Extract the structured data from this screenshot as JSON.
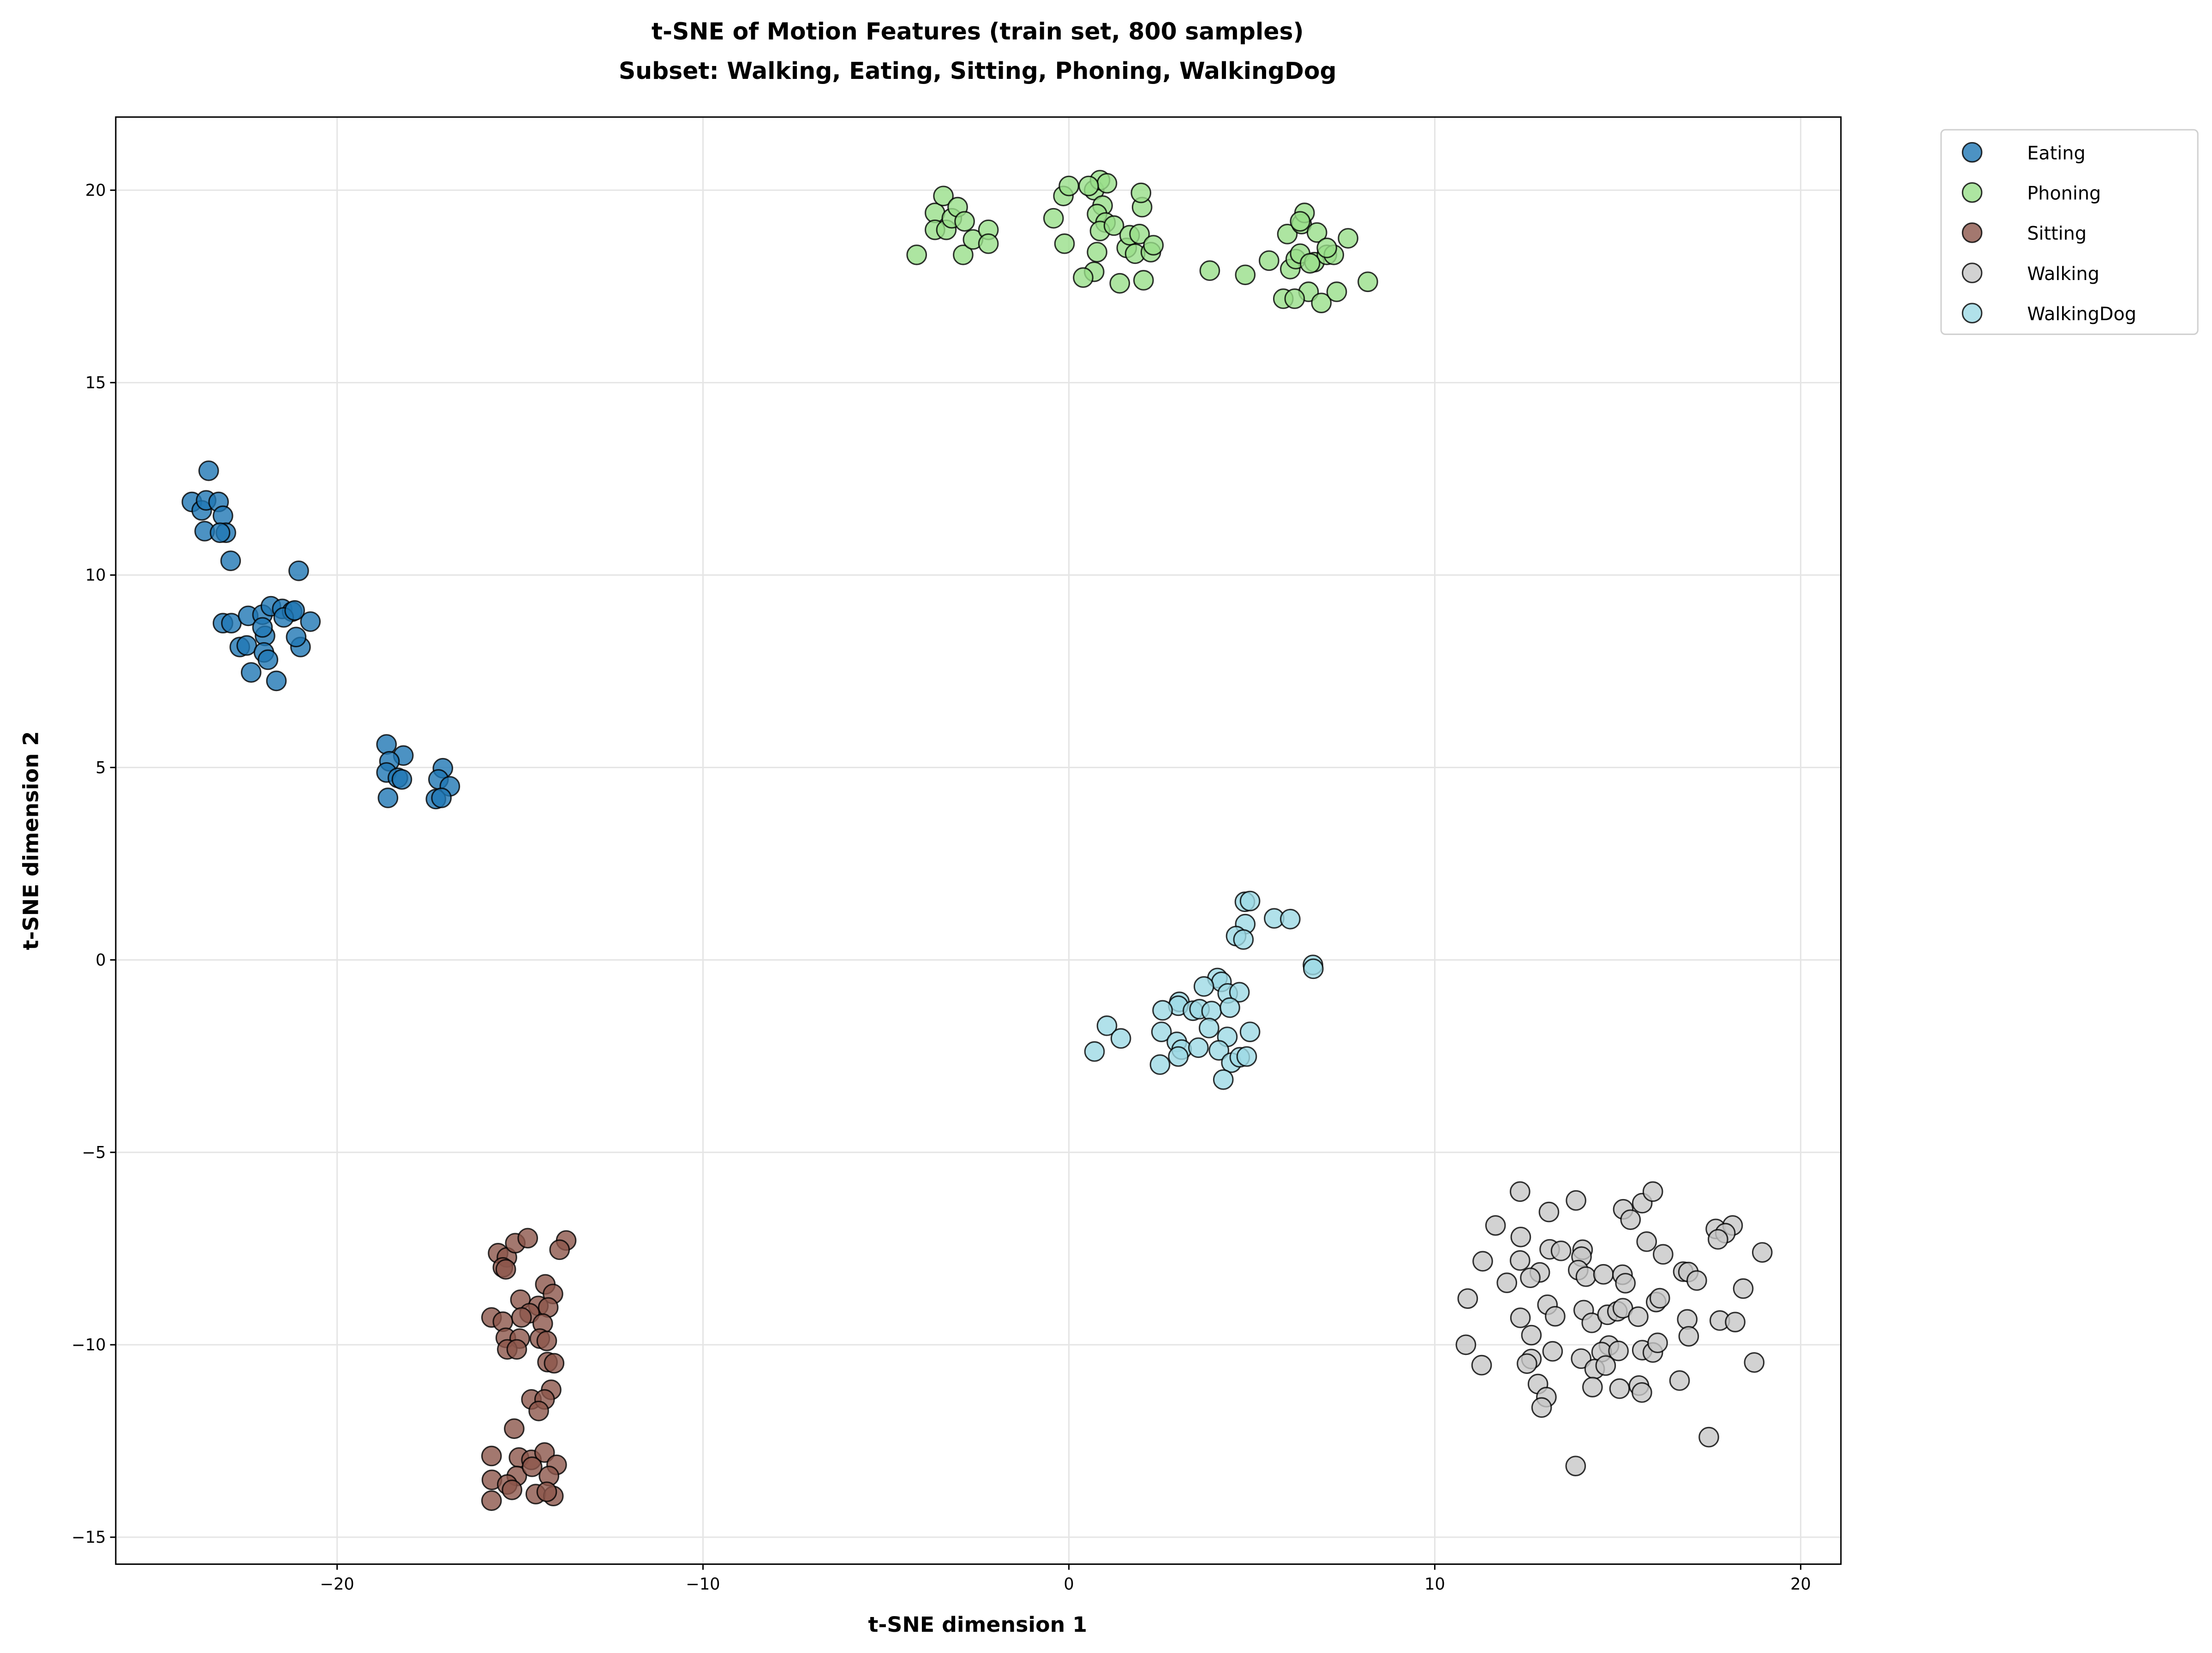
{
  "chart_data": {
    "type": "scatter",
    "title": "t-SNE of Motion Features (train set, 800 samples)",
    "subtitle": "Subset: Walking, Eating, Sitting, Phoning, WalkingDog",
    "xlabel": "t-SNE dimension 1",
    "ylabel": "t-SNE dimension 2",
    "xlim": [
      -26.05,
      21.1
    ],
    "ylim": [
      -15.7,
      21.9
    ],
    "xticks": [
      -20,
      -10,
      0,
      10,
      20
    ],
    "yticks": [
      -15,
      -10,
      -5,
      0,
      5,
      10,
      15,
      20
    ],
    "xtick_labels": [
      "−20",
      "−10",
      "0",
      "10",
      "20"
    ],
    "ytick_labels": [
      "−15",
      "−10",
      "−5",
      "0",
      "5",
      "10",
      "15",
      "20"
    ],
    "grid": true,
    "legend_placement": "outside-top-right",
    "series": [
      {
        "name": "Eating",
        "color": "#1f77b4",
        "points": [
          [
            -23.51,
            12.71
          ],
          [
            -23.97,
            11.9
          ],
          [
            -23.7,
            11.68
          ],
          [
            -23.58,
            11.94
          ],
          [
            -23.24,
            11.9
          ],
          [
            -23.12,
            11.54
          ],
          [
            -23.62,
            11.14
          ],
          [
            -23.04,
            11.1
          ],
          [
            -23.2,
            11.1
          ],
          [
            -22.91,
            10.37
          ],
          [
            -21.05,
            10.11
          ],
          [
            -23.12,
            8.75
          ],
          [
            -22.89,
            8.75
          ],
          [
            -22.43,
            8.94
          ],
          [
            -22.04,
            8.97
          ],
          [
            -21.81,
            9.19
          ],
          [
            -21.5,
            9.12
          ],
          [
            -21.23,
            9.05
          ],
          [
            -20.73,
            8.79
          ],
          [
            -22.66,
            8.13
          ],
          [
            -22.47,
            8.17
          ],
          [
            -21.97,
            8.42
          ],
          [
            -22.0,
            7.99
          ],
          [
            -21.89,
            7.8
          ],
          [
            -22.35,
            7.47
          ],
          [
            -21.66,
            7.25
          ],
          [
            -21.0,
            8.13
          ],
          [
            -21.12,
            8.39
          ],
          [
            -21.46,
            8.9
          ],
          [
            -22.04,
            8.64
          ],
          [
            -21.16,
            9.08
          ],
          [
            -18.65,
            5.6
          ],
          [
            -18.19,
            5.31
          ],
          [
            -18.57,
            5.16
          ],
          [
            -18.65,
            4.87
          ],
          [
            -18.34,
            4.73
          ],
          [
            -18.23,
            4.69
          ],
          [
            -18.61,
            4.21
          ],
          [
            -17.11,
            4.98
          ],
          [
            -17.23,
            4.69
          ],
          [
            -16.92,
            4.51
          ],
          [
            -17.3,
            4.18
          ],
          [
            -17.15,
            4.21
          ]
        ]
      },
      {
        "name": "Phoning",
        "color": "#98df8a",
        "points": [
          [
            -4.16,
            18.32
          ],
          [
            -3.66,
            19.41
          ],
          [
            -3.43,
            19.85
          ],
          [
            -3.66,
            18.97
          ],
          [
            -3.35,
            18.97
          ],
          [
            -3.2,
            19.27
          ],
          [
            -3.04,
            19.56
          ],
          [
            -2.85,
            19.19
          ],
          [
            -2.89,
            18.32
          ],
          [
            -2.62,
            18.72
          ],
          [
            -2.2,
            18.97
          ],
          [
            -2.2,
            18.61
          ],
          [
            -0.42,
            19.27
          ],
          [
            -0.15,
            19.85
          ],
          [
            0.0,
            20.11
          ],
          [
            -0.12,
            18.61
          ],
          [
            0.69,
            20.0
          ],
          [
            0.85,
            20.26
          ],
          [
            1.04,
            20.18
          ],
          [
            0.92,
            19.6
          ],
          [
            0.77,
            19.38
          ],
          [
            1.0,
            19.16
          ],
          [
            0.85,
            18.94
          ],
          [
            1.23,
            19.08
          ],
          [
            0.77,
            18.39
          ],
          [
            0.69,
            17.88
          ],
          [
            0.39,
            17.73
          ],
          [
            0.54,
            20.11
          ],
          [
            1.39,
            17.58
          ],
          [
            1.58,
            18.5
          ],
          [
            1.66,
            18.83
          ],
          [
            1.81,
            18.35
          ],
          [
            1.93,
            18.86
          ],
          [
            2.0,
            19.56
          ],
          [
            2.04,
            17.66
          ],
          [
            2.24,
            18.39
          ],
          [
            2.31,
            18.57
          ],
          [
            1.97,
            19.93
          ],
          [
            3.85,
            17.91
          ],
          [
            4.82,
            17.8
          ],
          [
            5.47,
            18.17
          ],
          [
            5.86,
            17.18
          ],
          [
            5.97,
            18.86
          ],
          [
            6.05,
            17.95
          ],
          [
            6.2,
            18.21
          ],
          [
            6.32,
            18.35
          ],
          [
            6.36,
            19.12
          ],
          [
            6.44,
            19.41
          ],
          [
            6.55,
            17.36
          ],
          [
            6.71,
            18.13
          ],
          [
            6.78,
            18.9
          ],
          [
            6.9,
            17.07
          ],
          [
            7.05,
            18.32
          ],
          [
            7.24,
            18.32
          ],
          [
            7.32,
            17.36
          ],
          [
            7.63,
            18.75
          ],
          [
            8.17,
            17.62
          ],
          [
            6.17,
            17.18
          ],
          [
            6.32,
            19.19
          ],
          [
            6.59,
            18.1
          ],
          [
            7.05,
            18.5
          ]
        ]
      },
      {
        "name": "Sitting",
        "color": "#8c564b",
        "points": [
          [
            -15.6,
            -7.62
          ],
          [
            -15.36,
            -7.73
          ],
          [
            -15.13,
            -7.36
          ],
          [
            -14.79,
            -7.23
          ],
          [
            -13.74,
            -7.29
          ],
          [
            -13.92,
            -7.53
          ],
          [
            -15.47,
            -7.99
          ],
          [
            -15.39,
            -8.04
          ],
          [
            -14.31,
            -8.43
          ],
          [
            -14.1,
            -8.68
          ],
          [
            -14.99,
            -8.83
          ],
          [
            -14.5,
            -8.99
          ],
          [
            -14.23,
            -9.03
          ],
          [
            -14.74,
            -9.18
          ],
          [
            -15.78,
            -9.29
          ],
          [
            -15.47,
            -9.4
          ],
          [
            -14.96,
            -9.29
          ],
          [
            -14.38,
            -9.45
          ],
          [
            -15.39,
            -9.82
          ],
          [
            -15.01,
            -9.84
          ],
          [
            -14.46,
            -9.84
          ],
          [
            -14.27,
            -9.9
          ],
          [
            -15.35,
            -10.12
          ],
          [
            -15.09,
            -10.12
          ],
          [
            -14.25,
            -10.45
          ],
          [
            -14.07,
            -10.48
          ],
          [
            -14.15,
            -11.17
          ],
          [
            -14.69,
            -11.42
          ],
          [
            -14.33,
            -11.42
          ],
          [
            -14.49,
            -11.72
          ],
          [
            -15.16,
            -12.18
          ],
          [
            -15.78,
            -12.89
          ],
          [
            -15.03,
            -12.93
          ],
          [
            -14.69,
            -12.99
          ],
          [
            -14.33,
            -12.8
          ],
          [
            -14.0,
            -13.12
          ],
          [
            -14.21,
            -13.41
          ],
          [
            -15.09,
            -13.41
          ],
          [
            -15.77,
            -13.51
          ],
          [
            -15.35,
            -13.63
          ],
          [
            -15.22,
            -13.77
          ],
          [
            -14.57,
            -13.88
          ],
          [
            -14.09,
            -13.93
          ],
          [
            -15.78,
            -14.05
          ],
          [
            -14.27,
            -13.82
          ],
          [
            -14.67,
            -13.17
          ]
        ]
      },
      {
        "name": "Walking",
        "color": "#c7c7c7",
        "points": [
          [
            12.33,
            -6.02
          ],
          [
            13.86,
            -6.25
          ],
          [
            13.12,
            -6.55
          ],
          [
            11.66,
            -6.9
          ],
          [
            15.15,
            -6.48
          ],
          [
            15.67,
            -6.32
          ],
          [
            15.96,
            -6.02
          ],
          [
            15.35,
            -6.75
          ],
          [
            12.35,
            -7.2
          ],
          [
            17.68,
            -6.99
          ],
          [
            18.14,
            -6.9
          ],
          [
            17.94,
            -7.1
          ],
          [
            17.74,
            -7.26
          ],
          [
            15.79,
            -7.32
          ],
          [
            16.24,
            -7.65
          ],
          [
            18.95,
            -7.6
          ],
          [
            11.31,
            -7.83
          ],
          [
            12.33,
            -7.81
          ],
          [
            13.14,
            -7.52
          ],
          [
            13.45,
            -7.56
          ],
          [
            14.04,
            -7.53
          ],
          [
            14.01,
            -7.71
          ],
          [
            12.87,
            -8.12
          ],
          [
            12.61,
            -8.26
          ],
          [
            11.97,
            -8.39
          ],
          [
            13.92,
            -8.06
          ],
          [
            14.13,
            -8.23
          ],
          [
            14.61,
            -8.17
          ],
          [
            15.13,
            -8.18
          ],
          [
            15.21,
            -8.4
          ],
          [
            16.79,
            -8.1
          ],
          [
            16.93,
            -8.11
          ],
          [
            17.16,
            -8.33
          ],
          [
            18.43,
            -8.54
          ],
          [
            10.9,
            -8.8
          ],
          [
            13.08,
            -8.96
          ],
          [
            13.29,
            -9.26
          ],
          [
            14.07,
            -9.1
          ],
          [
            14.29,
            -9.43
          ],
          [
            14.72,
            -9.22
          ],
          [
            14.99,
            -9.13
          ],
          [
            15.14,
            -9.05
          ],
          [
            15.56,
            -9.27
          ],
          [
            16.05,
            -8.89
          ],
          [
            16.15,
            -8.79
          ],
          [
            16.9,
            -9.34
          ],
          [
            17.79,
            -9.37
          ],
          [
            18.21,
            -9.41
          ],
          [
            12.34,
            -9.3
          ],
          [
            12.64,
            -9.75
          ],
          [
            16.94,
            -9.78
          ],
          [
            10.85,
            -10.0
          ],
          [
            13.22,
            -10.17
          ],
          [
            14.76,
            -10.02
          ],
          [
            14.56,
            -10.19
          ],
          [
            15.02,
            -10.16
          ],
          [
            15.67,
            -10.14
          ],
          [
            15.96,
            -10.2
          ],
          [
            16.09,
            -9.95
          ],
          [
            14.0,
            -10.36
          ],
          [
            14.37,
            -10.63
          ],
          [
            14.67,
            -10.54
          ],
          [
            12.64,
            -10.37
          ],
          [
            12.52,
            -10.49
          ],
          [
            11.28,
            -10.53
          ],
          [
            18.73,
            -10.46
          ],
          [
            12.82,
            -11.02
          ],
          [
            13.05,
            -11.36
          ],
          [
            12.92,
            -11.63
          ],
          [
            14.31,
            -11.1
          ],
          [
            15.05,
            -11.14
          ],
          [
            15.58,
            -11.06
          ],
          [
            15.66,
            -11.24
          ],
          [
            16.69,
            -10.93
          ],
          [
            17.49,
            -12.4
          ],
          [
            13.85,
            -13.15
          ]
        ]
      },
      {
        "name": "WalkingDog",
        "color": "#9edae5",
        "points": [
          [
            4.81,
            1.51
          ],
          [
            4.95,
            1.53
          ],
          [
            5.61,
            1.08
          ],
          [
            6.05,
            1.06
          ],
          [
            4.82,
            0.93
          ],
          [
            4.57,
            0.62
          ],
          [
            4.77,
            0.53
          ],
          [
            6.67,
            -0.13
          ],
          [
            6.68,
            -0.23
          ],
          [
            4.06,
            -0.47
          ],
          [
            4.17,
            -0.57
          ],
          [
            3.69,
            -0.69
          ],
          [
            4.34,
            -0.87
          ],
          [
            4.66,
            -0.84
          ],
          [
            3.02,
            -1.09
          ],
          [
            2.99,
            -1.19
          ],
          [
            2.56,
            -1.31
          ],
          [
            3.39,
            -1.32
          ],
          [
            3.57,
            -1.28
          ],
          [
            3.9,
            -1.33
          ],
          [
            4.4,
            -1.24
          ],
          [
            1.04,
            -1.71
          ],
          [
            1.42,
            -2.04
          ],
          [
            0.7,
            -2.38
          ],
          [
            2.53,
            -1.87
          ],
          [
            3.83,
            -1.77
          ],
          [
            4.33,
            -2.0
          ],
          [
            4.95,
            -1.87
          ],
          [
            2.95,
            -2.13
          ],
          [
            3.08,
            -2.33
          ],
          [
            2.99,
            -2.51
          ],
          [
            3.54,
            -2.28
          ],
          [
            4.1,
            -2.35
          ],
          [
            4.44,
            -2.67
          ],
          [
            4.67,
            -2.53
          ],
          [
            4.86,
            -2.51
          ],
          [
            2.49,
            -2.72
          ],
          [
            4.22,
            -3.11
          ]
        ]
      }
    ]
  }
}
